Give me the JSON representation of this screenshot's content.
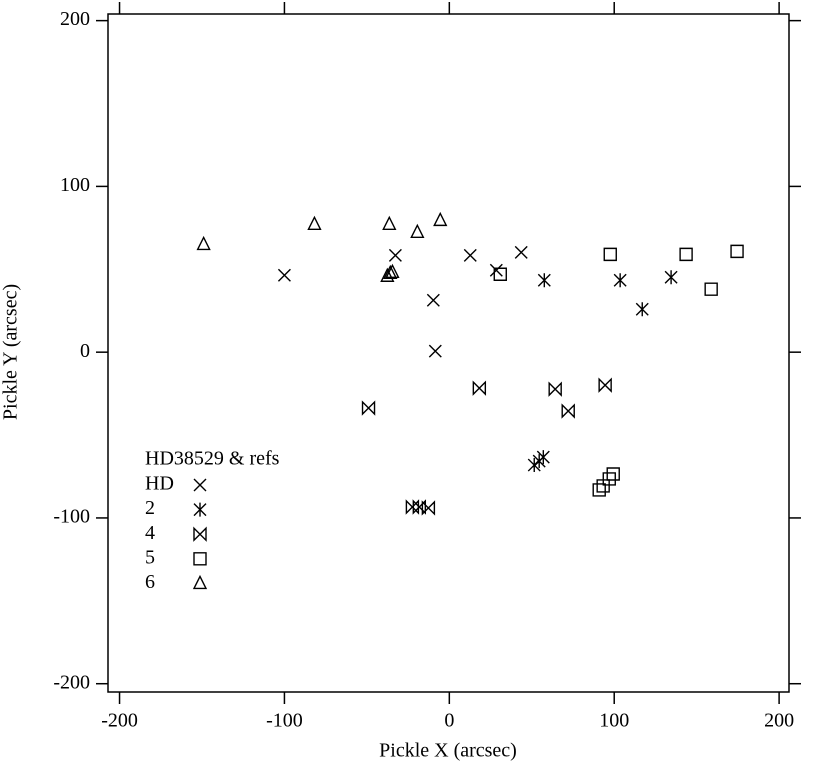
{
  "chart_data": {
    "type": "scatter",
    "x_label": "Pickle X (arcsec)",
    "y_label": "Pickle Y (arcsec)",
    "legend_title": "HD38529 & refs",
    "legend": "lower left",
    "xlim": [
      -207,
      206
    ],
    "ylim": [
      -205,
      204
    ],
    "xticks": [
      -200,
      -100,
      0,
      100,
      200
    ],
    "yticks": [
      -200,
      -100,
      0,
      100,
      200
    ],
    "series": [
      {
        "name": "HD",
        "marker": "x",
        "color": "#000000",
        "x": [
          -100,
          -32.7,
          -9.7,
          -8.5,
          12.7,
          28.5,
          43.6
        ],
        "values": [
          46.4,
          58.4,
          31.3,
          0.6,
          58.4,
          49.4,
          60.2
        ]
      },
      {
        "name": "2",
        "marker": "asterisk",
        "color": "#000000",
        "x": [
          57.6,
          103.6,
          117,
          134.5,
          51.5,
          54.5,
          57
        ],
        "values": [
          43.4,
          43.4,
          25.9,
          45.2,
          -68.1,
          -65.7,
          -63.3
        ]
      },
      {
        "name": "4",
        "marker": "bowtie",
        "color": "#000000",
        "x": [
          -49,
          18.2,
          64.2,
          72.1,
          94.5,
          -22.4,
          -18.2,
          -12.7
        ],
        "values": [
          -33.7,
          -21.7,
          -22.3,
          -35.5,
          -19.9,
          -93.4,
          -93.4,
          -94
        ]
      },
      {
        "name": "5",
        "marker": "square",
        "color": "#000000",
        "x": [
          30.9,
          97.6,
          143.6,
          158.8,
          174.5,
          90.9,
          93.3,
          97,
          99.4
        ],
        "values": [
          47,
          59,
          59,
          38,
          60.8,
          -83.1,
          -80.7,
          -76.5,
          -73.5
        ]
      },
      {
        "name": "6",
        "marker": "triangle",
        "color": "#000000",
        "x": [
          -149,
          -81.8,
          -36.4,
          -19.4,
          -5.5,
          -37.6,
          -35.8,
          -34.5
        ],
        "values": [
          65,
          77.1,
          77.1,
          72.3,
          79.5,
          45.8,
          47.6,
          48.2
        ]
      }
    ]
  }
}
